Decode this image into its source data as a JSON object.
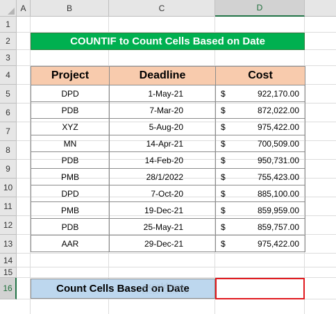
{
  "columns": [
    "A",
    "B",
    "C",
    "D"
  ],
  "rows": [
    "1",
    "2",
    "3",
    "4",
    "5",
    "6",
    "7",
    "8",
    "9",
    "10",
    "11",
    "12",
    "13",
    "14",
    "15",
    "16"
  ],
  "title": "COUNTIF to Count Cells Based on Date",
  "headers": {
    "project": "Project",
    "deadline": "Deadline",
    "cost": "Cost"
  },
  "data": [
    {
      "project": "DPD",
      "deadline": "1-May-21",
      "currency": "$",
      "cost": "922,170.00"
    },
    {
      "project": "PDB",
      "deadline": "7-Mar-20",
      "currency": "$",
      "cost": "872,022.00"
    },
    {
      "project": "XYZ",
      "deadline": "5-Aug-20",
      "currency": "$",
      "cost": "975,422.00"
    },
    {
      "project": "MN",
      "deadline": "14-Apr-21",
      "currency": "$",
      "cost": "700,509.00"
    },
    {
      "project": "PDB",
      "deadline": "14-Feb-20",
      "currency": "$",
      "cost": "950,731.00"
    },
    {
      "project": "PMB",
      "deadline": "28/1/2022",
      "currency": "$",
      "cost": "755,423.00"
    },
    {
      "project": "DPD",
      "deadline": "7-Oct-20",
      "currency": "$",
      "cost": "885,100.00"
    },
    {
      "project": "PMB",
      "deadline": "19-Dec-21",
      "currency": "$",
      "cost": "859,959.00"
    },
    {
      "project": "PDB",
      "deadline": "25-May-21",
      "currency": "$",
      "cost": "859,757.00"
    },
    {
      "project": "AAR",
      "deadline": "29-Dec-21",
      "currency": "$",
      "cost": "975,422.00"
    }
  ],
  "result_label": "Count Cells Based on Date",
  "result_value": "",
  "watermark": {
    "name": "exceldemy",
    "tagline": "EXCEL · DATA · BI"
  },
  "colors": {
    "title_bg": "#00b050",
    "header_bg": "#f8cbad",
    "result_bg": "#bdd7ee",
    "selection": "#e0191e"
  }
}
